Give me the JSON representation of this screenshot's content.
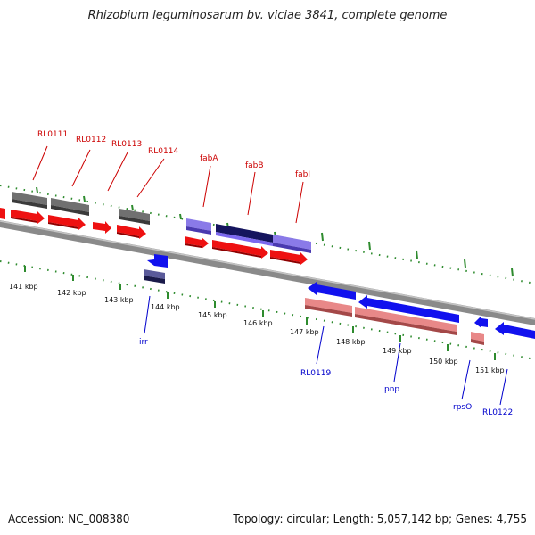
{
  "title": "Rhizobium leguminosarum bv. viciae 3841, complete genome",
  "accession": "Accession: NC_008380",
  "summary": "Topology: circular; Length: 5,057,142 bp; Genes: 4,755",
  "colors": {
    "backbone": "#7a7a7a",
    "tick": "#2e8b2e",
    "forward_cds": "#ee1111",
    "forward_gene_grey": "#666666",
    "forward_gene_purple": "#7b68ee",
    "forward_gene_navy": "#1a1a6e",
    "reverse_cds": "#1111ee",
    "reverse_gene_pink": "#e88080",
    "reverse_gene_navy": "#3a3a7a",
    "label_top": "#cc0000",
    "label_bottom": "#0000cc"
  },
  "kbp_ticks": [
    "141 kbp",
    "142 kbp",
    "143 kbp",
    "144 kbp",
    "145 kbp",
    "146 kbp",
    "147 kbp",
    "148 kbp",
    "149 kbp",
    "150 kbp",
    "151 kbp"
  ],
  "labels_top": [
    "RL0111",
    "RL0112",
    "RL0113",
    "RL0114",
    "fabA",
    "fabB",
    "fabI"
  ],
  "labels_bottom": [
    "irr",
    "RL0119",
    "pnp",
    "rpsO",
    "RL0122"
  ]
}
